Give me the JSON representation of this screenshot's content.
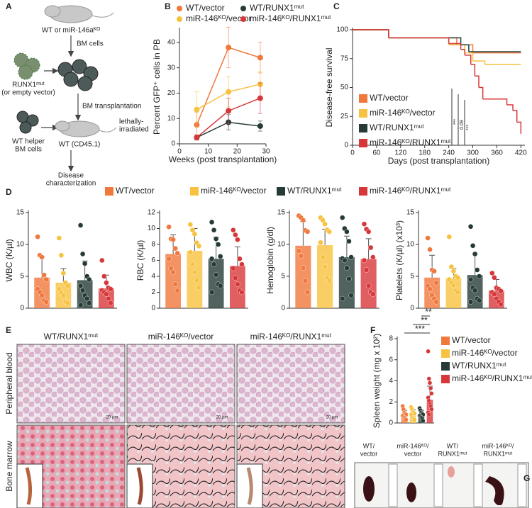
{
  "panel_labels": [
    "A",
    "B",
    "C",
    "D",
    "E",
    "F",
    "G"
  ],
  "schematic": {
    "top": "WT or miR-146aᴷᴼ",
    "bm_cells": "BM cells",
    "runx1": "RUNX1ᵐᵘᵗ",
    "empty": "(or empty vector)",
    "transplant": "BM transplantation",
    "helper1": "WT helper",
    "helper2": "BM cells",
    "recipient": "WT (CD45.1)",
    "irr1": "lethally-",
    "irr2": "irradiated",
    "disease1": "Disease",
    "disease2": "characterization"
  },
  "micrographs": {
    "columns": [
      "WT/RUNX1ᵐᵘᵗ",
      "miR-146ᴷᴼ/vector",
      "miR-146ᴷᴼ/RUNX1ᵐᵘᵗ"
    ],
    "rows": [
      "Peripheral blood",
      "Bone marrow"
    ],
    "scale_bars": [
      "20 µm",
      "20 µm",
      "20 µm"
    ]
  },
  "spleen_photos": {
    "labels": [
      [
        "WT/",
        "vector"
      ],
      [
        "miR-146ᴷᴼ/",
        "vector"
      ],
      [
        "WT/",
        "RUNX1ᵐᵘᵗ"
      ],
      [
        "miR-146ᴷᴼ/",
        "RUNX1ᵐᵘᵗ"
      ]
    ]
  },
  "chart_data": [
    {
      "type": "line",
      "xlabel": "Weeks (post transplantation)",
      "ylabel": "Percent GFP⁺ cells in PB",
      "x": [
        6,
        17,
        28
      ],
      "xlim": [
        0,
        30
      ],
      "xticks": [
        0,
        10,
        20,
        30
      ],
      "ylim": [
        0,
        45
      ],
      "yticks": [
        0,
        10,
        20,
        30,
        40
      ],
      "series": [
        {
          "name": "WT/vector",
          "color": "#f0783c",
          "values": [
            7.5,
            38,
            34
          ],
          "errors": [
            5,
            8,
            6
          ]
        },
        {
          "name": "miR-146ᴷᴼ/vector",
          "color": "#f7c23f",
          "values": [
            13.5,
            20.5,
            23.5
          ],
          "errors": [
            7,
            6,
            5
          ]
        },
        {
          "name": "WT/RUNX1ᵐᵘᵗ",
          "color": "#263b37",
          "values": [
            2.5,
            8.5,
            7
          ],
          "errors": [
            1,
            3,
            2
          ]
        },
        {
          "name": "miR-146ᴷᴼ/RUNX1ᵐᵘᵗ",
          "color": "#d8373a",
          "values": [
            2.5,
            13,
            18
          ],
          "errors": [
            1,
            5,
            6
          ]
        }
      ]
    },
    {
      "type": "step",
      "xlabel": "Days (post transplantation)",
      "ylabel": "Disease-free survival",
      "xlim": [
        0,
        430
      ],
      "xticks": [
        0,
        60,
        120,
        180,
        240,
        300,
        360,
        420
      ],
      "ylim": [
        0,
        100
      ],
      "yticks": [
        0,
        25,
        50,
        75,
        100
      ],
      "annotations": [
        "***",
        "0.09",
        "***"
      ],
      "series": [
        {
          "name": "WT/vector",
          "color": "#f0783c",
          "x": [
            20,
            90,
            260,
            300,
            420
          ],
          "values": [
            100,
            93,
            87,
            80,
            80
          ]
        },
        {
          "name": "miR-146ᴷᴼ/vector",
          "color": "#f7c23f",
          "x": [
            20,
            90,
            240,
            280,
            300,
            330,
            420
          ],
          "values": [
            100,
            93,
            87,
            80,
            73,
            70,
            70
          ]
        },
        {
          "name": "WT/RUNX1ᵐᵘᵗ",
          "color": "#263b37",
          "x": [
            20,
            90,
            270,
            290,
            420
          ],
          "values": [
            100,
            93,
            87,
            81,
            81
          ]
        },
        {
          "name": "miR-146ᴷᴼ/RUNX1ᵐᵘᵗ",
          "color": "#d8373a",
          "x": [
            20,
            90,
            240,
            270,
            280,
            295,
            305,
            315,
            325,
            385,
            400,
            410,
            420
          ],
          "values": [
            100,
            93,
            88,
            83,
            78,
            70,
            60,
            50,
            40,
            35,
            30,
            20,
            10
          ]
        }
      ]
    },
    {
      "type": "bar",
      "ylabel": "WBC (K/µl)",
      "ylim": [
        0,
        15
      ],
      "yticks": [
        0,
        5,
        10,
        15
      ],
      "legend": [
        {
          "name": "WT/vector",
          "color": "#f0783c"
        },
        {
          "name": "miR-146ᴷᴼ/vector",
          "color": "#f7c23f"
        },
        {
          "name": "WT/RUNX1ᵐᵘᵗ",
          "color": "#263b37"
        },
        {
          "name": "miR-146ᴷᴼ/RUNX1ᵐᵘᵗ",
          "color": "#d8373a"
        }
      ],
      "colors": [
        "#f0783c",
        "#f7c23f",
        "#263b37",
        "#d8373a"
      ],
      "values": [
        4.8,
        4,
        4.4,
        3.1
      ],
      "errors": [
        3.3,
        2.2,
        3,
        2.1
      ],
      "points": [
        [
          11.2,
          8.3,
          8,
          5.2,
          4.5,
          3,
          2.5,
          2,
          1.2,
          1
        ],
        [
          11,
          8.3,
          5.5,
          4,
          3.5,
          3,
          2.5,
          2,
          1,
          0.8
        ],
        [
          13,
          8.5,
          7,
          5,
          4.5,
          3.5,
          2.8,
          2,
          1.5,
          0.8,
          0.5
        ],
        [
          7.5,
          5,
          4,
          3.2,
          3,
          2.8,
          2.5,
          2.2,
          1.5,
          0.8
        ]
      ]
    },
    {
      "type": "bar",
      "ylabel": "RBC (K/µl)",
      "ylim": [
        0,
        12
      ],
      "yticks": [
        0,
        2,
        4,
        6,
        8,
        10,
        12
      ],
      "colors": [
        "#f0783c",
        "#f7c23f",
        "#263b37",
        "#d8373a"
      ],
      "values": [
        6.8,
        7.2,
        6.2,
        5.3
      ],
      "errors": [
        2.4,
        2.8,
        2.7,
        2.4
      ],
      "points": [
        [
          10.2,
          8.7,
          8.6,
          7.5,
          6.9,
          6.2,
          5,
          4.5,
          3,
          2.2
        ],
        [
          10.5,
          9.8,
          9.3,
          8.2,
          7.8,
          7,
          5.5,
          4.5,
          3.5,
          2.6
        ],
        [
          10.8,
          9.8,
          8.7,
          8,
          6.5,
          6.2,
          5.5,
          4.2,
          3,
          2.8,
          2
        ],
        [
          9.8,
          9.2,
          8.6,
          6.2,
          5.5,
          5,
          3.8,
          3,
          2.2,
          2
        ]
      ]
    },
    {
      "type": "bar",
      "ylabel": "Hemoglobin (g/dl)",
      "ylim": [
        0,
        15
      ],
      "yticks": [
        0,
        5,
        10,
        15
      ],
      "colors": [
        "#f0783c",
        "#f7c23f",
        "#263b37",
        "#d8373a"
      ],
      "values": [
        9.8,
        9.9,
        8,
        7.7
      ],
      "errors": [
        3.8,
        2.5,
        3.3,
        3.2
      ],
      "points": [
        [
          14.5,
          14.2,
          13.8,
          12.2,
          12,
          9,
          8.2,
          6.3,
          4.3,
          2.5
        ],
        [
          14.2,
          13.8,
          13.2,
          12.3,
          12,
          10.3,
          8,
          6.5,
          4.8,
          4.3
        ],
        [
          14.2,
          12.5,
          12,
          10.5,
          8,
          7.8,
          7.5,
          6.3,
          4.6,
          2,
          1.5
        ],
        [
          13.2,
          12.4,
          12,
          9.5,
          8,
          7.5,
          6,
          3.5,
          2.5,
          2.2
        ]
      ]
    },
    {
      "type": "bar",
      "ylabel": "Platelets (K/µl) (x10³)",
      "ylim": [
        0,
        15
      ],
      "yticks": [
        0,
        5,
        10,
        15
      ],
      "colors": [
        "#f0783c",
        "#f7c23f",
        "#263b37",
        "#d8373a"
      ],
      "values": [
        4.8,
        4.7,
        5.2,
        2.8
      ],
      "errors": [
        3.5,
        1.5,
        3.3,
        1.7
      ],
      "points": [
        [
          11,
          9.2,
          6,
          5.8,
          4,
          3.5,
          3,
          2,
          1.5,
          1
        ],
        [
          11.2,
          6.5,
          5.8,
          5,
          4.8,
          4.5,
          4,
          3.6,
          2.8,
          2.5
        ],
        [
          12.8,
          9.8,
          8.5,
          6,
          5,
          4.5,
          3.2,
          2.8,
          1.5,
          1.2,
          1
        ],
        [
          5.5,
          4.8,
          3.2,
          3,
          2.7,
          2.5,
          2.2,
          1.5,
          1,
          0.6
        ]
      ]
    },
    {
      "type": "bar",
      "ylabel": "Spleen weight (mg x 10²)",
      "ylim": [
        0,
        8
      ],
      "yticks": [
        0,
        2,
        4,
        6,
        8
      ],
      "annotations": [
        "**",
        "**",
        "***"
      ],
      "legend": [
        {
          "name": "WT/vector",
          "color": "#f0783c"
        },
        {
          "name": "miR-146ᴷᴼ/vector",
          "color": "#f7c23f"
        },
        {
          "name": "WT/RUNX1ᵐᵘᵗ",
          "color": "#263b37"
        },
        {
          "name": "miR-146ᴷᴼ/RUNX1ᵐᵘᵗ",
          "color": "#d8373a"
        }
      ],
      "colors": [
        "#f0783c",
        "#f7c23f",
        "#263b37",
        "#d8373a"
      ],
      "values": [
        0.8,
        0.85,
        0.8,
        2.2
      ],
      "errors": [
        0.4,
        0.4,
        0.4,
        1.3
      ],
      "points": [
        [
          1.6,
          1.3,
          1,
          0.9,
          0.8,
          0.7,
          0.6,
          0.5,
          0.4,
          0.3
        ],
        [
          1.5,
          1.3,
          1.1,
          1,
          0.9,
          0.8,
          0.7,
          0.5,
          0.4,
          0.3
        ],
        [
          1.4,
          1.2,
          1,
          0.9,
          0.8,
          0.7,
          0.6,
          0.5,
          0.4,
          0.2
        ],
        [
          6.8,
          4.2,
          3.8,
          3.3,
          2.8,
          2.4,
          2.1,
          1.8,
          1.6,
          1.3,
          1,
          0.8
        ]
      ]
    }
  ]
}
